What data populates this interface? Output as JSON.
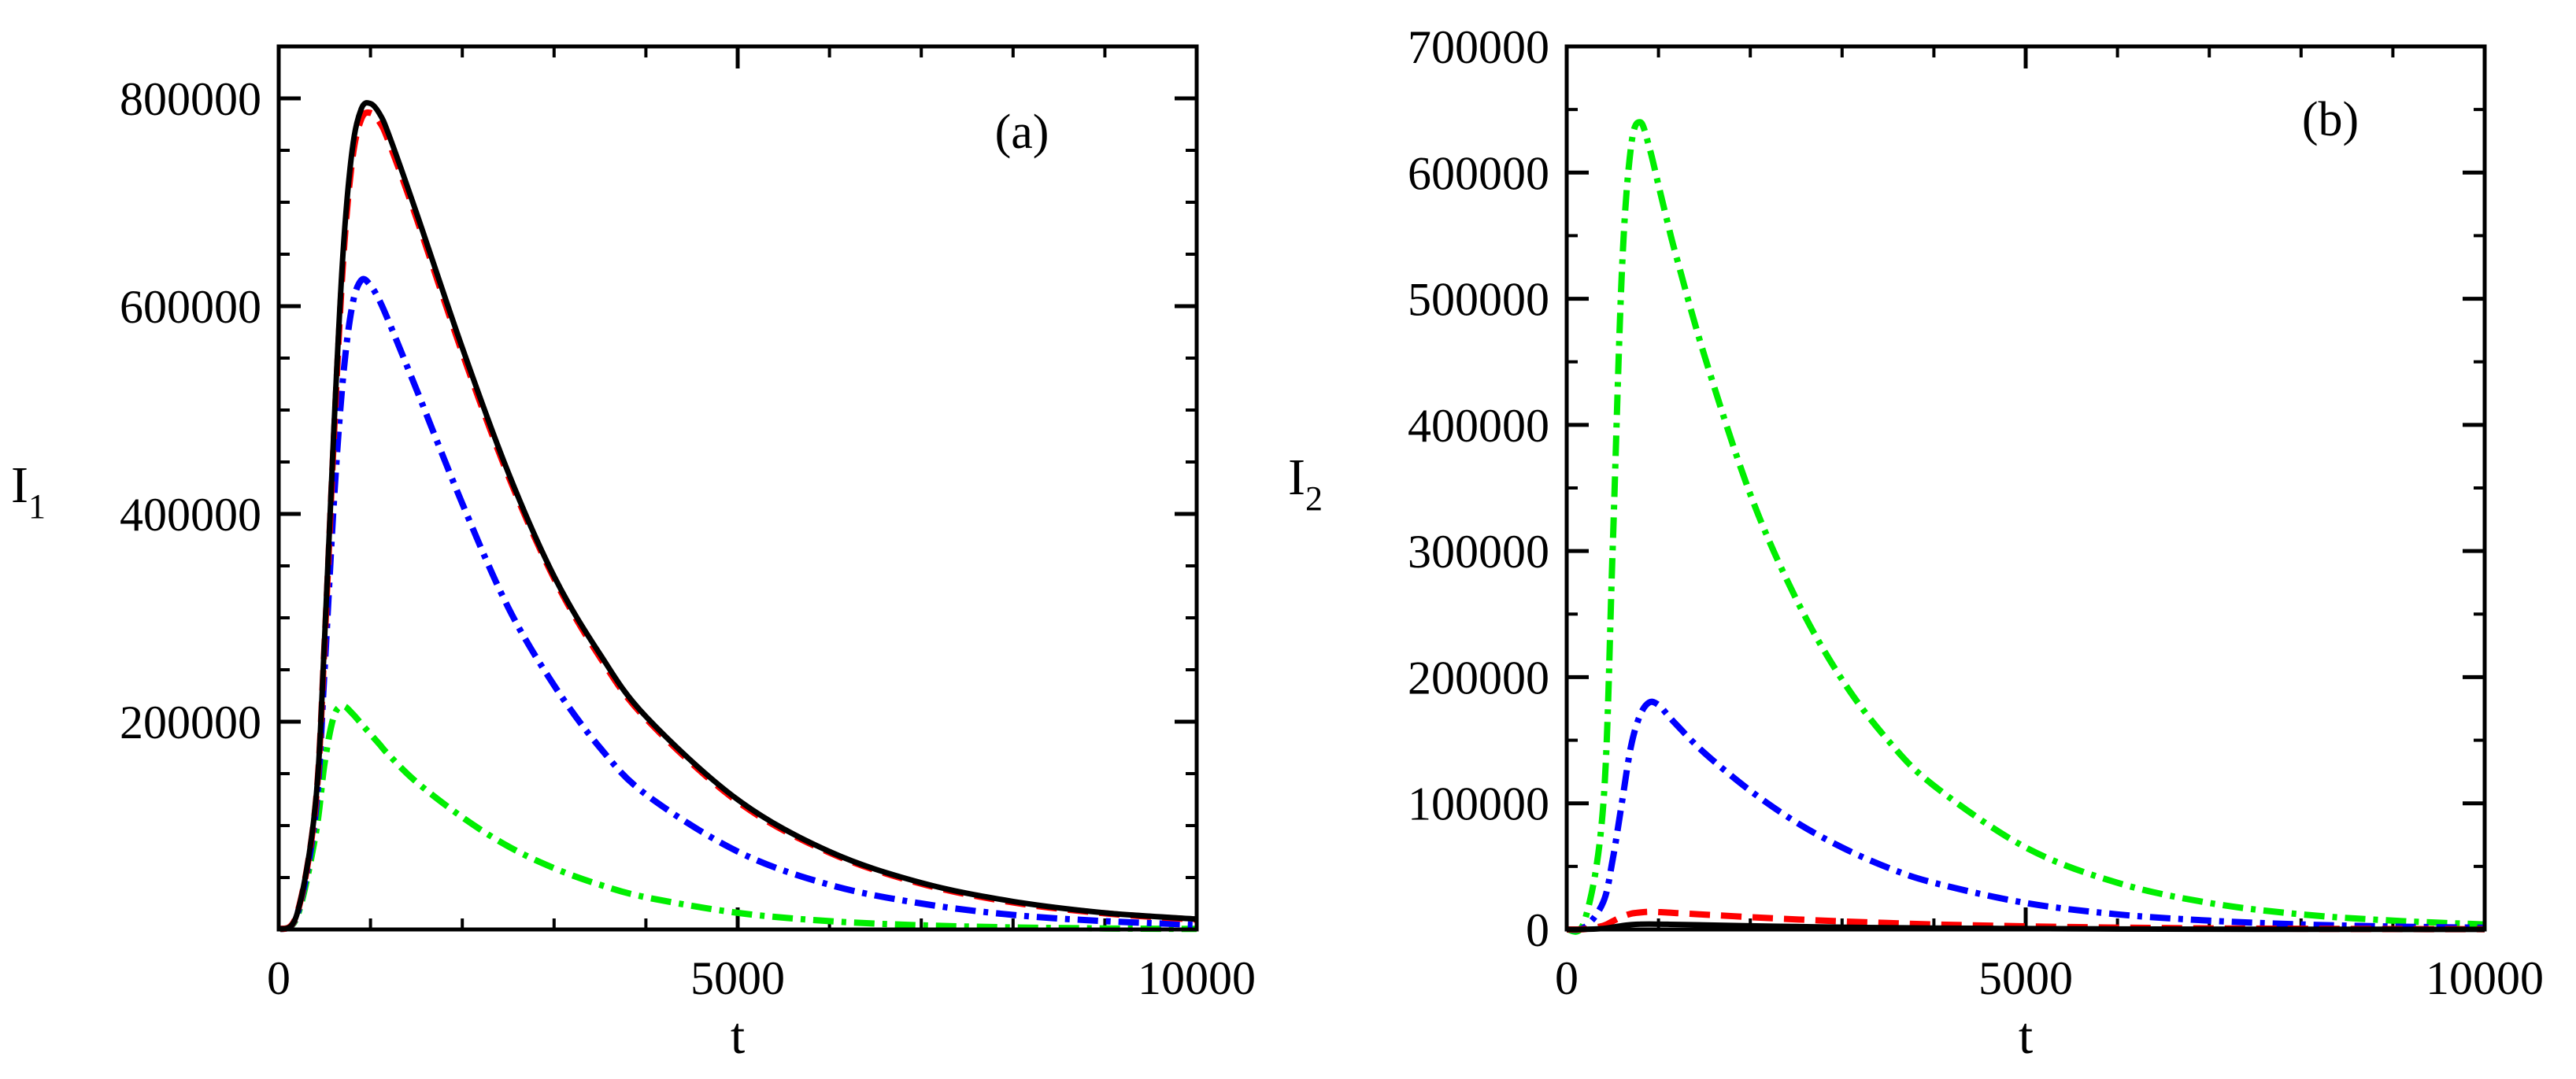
{
  "colors": {
    "black": "#000000",
    "red": "#ff0000",
    "blue": "#0000ff",
    "green": "#00ee00"
  },
  "chart_data": [
    {
      "type": "line",
      "panel_label": "(a)",
      "xlabel": "t",
      "ylabel": "I",
      "ylabel_sub": "1",
      "xlim": [
        0,
        10000
      ],
      "ylim": [
        0,
        850000
      ],
      "xticks": [
        0,
        5000,
        10000
      ],
      "xtick_labels": [
        "0",
        "5000",
        "10000"
      ],
      "yticks": [
        200000,
        400000,
        600000,
        800000
      ],
      "ytick_labels": [
        "200000",
        "400000",
        "600000",
        "800000"
      ],
      "x": [
        0,
        200,
        400,
        500,
        600,
        700,
        800,
        900,
        1000,
        1100,
        1200,
        1500,
        2000,
        2500,
        3000,
        3500,
        4000,
        5000,
        6000,
        7000,
        8000,
        9000,
        10000
      ],
      "series": [
        {
          "name": "black solid",
          "color_key": "black",
          "dash": "",
          "values": [
            0,
            15000,
            120000,
            280000,
            480000,
            650000,
            750000,
            790000,
            795000,
            785000,
            765000,
            690000,
            560000,
            440000,
            340000,
            265000,
            205000,
            125000,
            75000,
            45000,
            27000,
            16000,
            10000
          ]
        },
        {
          "name": "red dashed",
          "color_key": "red",
          "dash": "26 14",
          "values": [
            0,
            15000,
            118000,
            276000,
            472000,
            640000,
            740000,
            780000,
            786000,
            777000,
            758000,
            685000,
            555000,
            437000,
            338000,
            262000,
            203000,
            123000,
            74000,
            44000,
            26000,
            15500,
            9500
          ]
        },
        {
          "name": "blue dash-dot",
          "color_key": "blue",
          "dash": "26 10 6 10",
          "values": [
            0,
            14000,
            110000,
            250000,
            410000,
            530000,
            600000,
            625000,
            620000,
            605000,
            585000,
            520000,
            410000,
            310000,
            235000,
            175000,
            130000,
            75000,
            43000,
            25000,
            14000,
            8000,
            4500
          ]
        },
        {
          "name": "green dash-dot",
          "color_key": "green",
          "dash": "26 10 6 10",
          "values": [
            0,
            12000,
            90000,
            160000,
            205000,
            215000,
            208000,
            198000,
            188000,
            178000,
            168000,
            142000,
            108000,
            80000,
            59000,
            43000,
            31000,
            16000,
            8000,
            4000,
            2000,
            1000,
            500
          ]
        }
      ]
    },
    {
      "type": "line",
      "panel_label": "(b)",
      "xlabel": "t",
      "ylabel": "I",
      "ylabel_sub": "2",
      "xlim": [
        0,
        10000
      ],
      "ylim": [
        0,
        700000
      ],
      "xticks": [
        0,
        5000,
        10000
      ],
      "xtick_labels": [
        "0",
        "5000",
        "10000"
      ],
      "yticks": [
        0,
        100000,
        200000,
        300000,
        400000,
        500000,
        600000,
        700000
      ],
      "ytick_labels": [
        "0",
        "100000",
        "200000",
        "300000",
        "400000",
        "500000",
        "600000",
        "700000"
      ],
      "x": [
        0,
        200,
        400,
        500,
        600,
        700,
        800,
        900,
        1000,
        1100,
        1200,
        1500,
        2000,
        2500,
        3000,
        3500,
        4000,
        5000,
        6000,
        7000,
        8000,
        9000,
        10000
      ],
      "series": [
        {
          "name": "black solid",
          "color_key": "black",
          "dash": "",
          "values": [
            0,
            100,
            800,
            1800,
            3000,
            3800,
            4200,
            4300,
            4200,
            4100,
            4000,
            3600,
            2900,
            2300,
            1800,
            1400,
            1100,
            700,
            400,
            250,
            150,
            100,
            60
          ]
        },
        {
          "name": "red dashed",
          "color_key": "red",
          "dash": "26 14",
          "values": [
            0,
            300,
            3000,
            6500,
            10000,
            12500,
            13500,
            14000,
            13800,
            13400,
            13000,
            11800,
            9800,
            8000,
            6400,
            5100,
            4000,
            2500,
            1500,
            900,
            550,
            330,
            200
          ]
        },
        {
          "name": "blue dash-dot",
          "color_key": "blue",
          "dash": "26 10 6 10",
          "values": [
            0,
            2000,
            22000,
            55000,
            100000,
            145000,
            170000,
            180000,
            178000,
            170000,
            162000,
            140000,
            110000,
            85000,
            65000,
            49000,
            37000,
            21000,
            12000,
            7000,
            4000,
            2300,
            1400
          ]
        },
        {
          "name": "green dash-dot",
          "color_key": "green",
          "dash": "26 10 6 10",
          "values": [
            0,
            8000,
            100000,
            300000,
            520000,
            620000,
            640000,
            620000,
            590000,
            560000,
            532000,
            455000,
            345000,
            262000,
            198000,
            150000,
            114000,
            65000,
            37000,
            21000,
            12000,
            7000,
            4000
          ]
        }
      ]
    }
  ]
}
